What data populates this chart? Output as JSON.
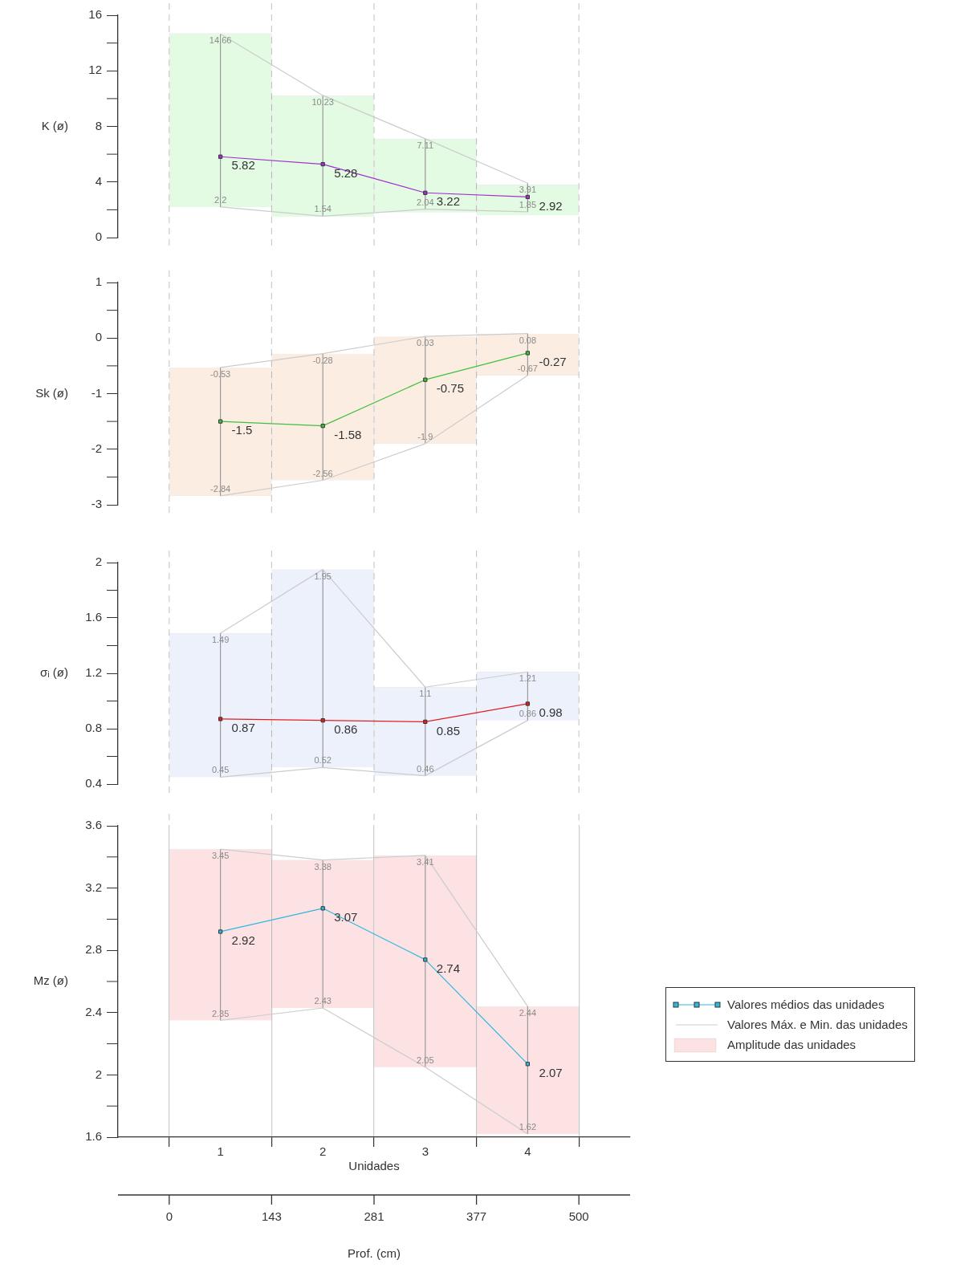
{
  "chart_data": [
    {
      "type": "line",
      "ylabel": "K (ø)",
      "x": [
        1,
        2,
        3,
        4
      ],
      "ylim": [
        0,
        16
      ],
      "yticks": [
        0,
        4,
        8,
        12,
        16
      ],
      "tick_labels": "y",
      "series": [
        {
          "type": "bar",
          "color": "#e3fae3",
          "base": [
            2.2,
            1.5,
            1.8,
            1.6
          ],
          "values": [
            12.5,
            8.7,
            5.3,
            2.2
          ]
        },
        {
          "color": "#cccccc",
          "marker": "none",
          "values": [
            14.66,
            10.23,
            7.11,
            3.91
          ],
          "value_labels": [
            "14.66",
            "10.23",
            "7.11",
            "3.91"
          ]
        },
        {
          "color": "#cccccc",
          "marker": "none",
          "values": [
            2.2,
            1.54,
            2.04,
            1.85
          ],
          "value_labels": [
            "2.2",
            "1.54",
            "2.04",
            "1.85"
          ]
        },
        {
          "color": "#a030d0",
          "marker": "square",
          "values": [
            5.82,
            5.28,
            3.22,
            2.92
          ],
          "errors": [
            [
              2.2,
              14.66
            ],
            [
              1.54,
              10.23
            ],
            [
              2.04,
              7.11
            ],
            [
              1.85,
              3.91
            ]
          ],
          "value_labels": [
            "5.82",
            "5.28",
            "3.22",
            "2.92"
          ]
        }
      ]
    },
    {
      "type": "line",
      "ylabel": "Sk (ø)",
      "x": [
        1,
        2,
        3,
        4
      ],
      "ylim": [
        -3,
        1
      ],
      "yticks": [
        -3,
        -2,
        -1,
        0,
        1
      ],
      "tick_labels": "y",
      "series": [
        {
          "type": "bar",
          "color": "#fcede2",
          "base": [
            -2.84,
            -2.56,
            -1.9,
            -0.67
          ],
          "values": [
            2.31,
            2.28,
            1.93,
            0.75
          ]
        },
        {
          "color": "#cccccc",
          "marker": "none",
          "values": [
            -0.53,
            -0.28,
            0.03,
            0.08
          ],
          "value_labels": [
            "-0.53",
            "-0.28",
            "0.03",
            "0.08"
          ]
        },
        {
          "color": "#cccccc",
          "marker": "none",
          "values": [
            -2.84,
            -2.56,
            -1.9,
            -0.67
          ],
          "value_labels": [
            "-2.84",
            "-2.56",
            "-1.9",
            "-0.67"
          ]
        },
        {
          "color": "#40c040",
          "marker": "square",
          "values": [
            -1.5,
            -1.58,
            -0.75,
            -0.27
          ],
          "errors": [
            [
              -2.84,
              -0.53
            ],
            [
              -2.56,
              -0.28
            ],
            [
              -1.9,
              0.03
            ],
            [
              -0.67,
              0.08
            ]
          ],
          "value_labels": [
            "-1.5",
            "-1.58",
            "-0.75",
            "-0.27"
          ]
        }
      ]
    },
    {
      "type": "line",
      "ylabel": "σᵢ (ø)",
      "x": [
        1,
        2,
        3,
        4
      ],
      "ylim": [
        0.4,
        2
      ],
      "yticks": [
        0.4,
        0.8,
        1.2,
        1.6,
        2
      ],
      "tick_labels": "y",
      "series": [
        {
          "type": "bar",
          "color": "#ecf1fc",
          "base": [
            0.45,
            0.52,
            0.46,
            0.86
          ],
          "values": [
            1.04,
            1.43,
            0.64,
            0.35
          ]
        },
        {
          "color": "#cccccc",
          "marker": "none",
          "values": [
            1.49,
            1.95,
            1.1,
            1.21
          ],
          "value_labels": [
            "1.49",
            "1.95",
            "1.1",
            "1.21"
          ]
        },
        {
          "color": "#cccccc",
          "marker": "none",
          "values": [
            0.45,
            0.52,
            0.46,
            0.86
          ],
          "value_labels": [
            "0.45",
            "0.52",
            "0.46",
            "0.86"
          ]
        },
        {
          "color": "#e02020",
          "marker": "square",
          "values": [
            0.87,
            0.86,
            0.85,
            0.98
          ],
          "errors": [
            [
              0.45,
              1.49
            ],
            [
              0.52,
              1.95
            ],
            [
              0.46,
              1.1
            ],
            [
              0.86,
              1.21
            ]
          ],
          "value_labels": [
            "0.87",
            "0.86",
            "0.85",
            "0.98"
          ]
        }
      ]
    },
    {
      "type": "line",
      "ylabel": "Mz (ø)",
      "xlabel": "Unidades",
      "x2label": "Prof. (cm)",
      "annotations": [
        "0",
        "143",
        "281",
        "377",
        "500"
      ],
      "x": [
        1,
        2,
        3,
        4
      ],
      "xlim": [
        0,
        5
      ],
      "xticks": [
        {
          "value": 0.5,
          "label": null
        },
        1,
        {
          "value": 1.5,
          "label": null
        },
        2,
        {
          "value": 2.5,
          "label": null
        },
        3,
        {
          "value": 3.5,
          "label": null
        },
        4,
        {
          "value": 4.5,
          "label": null
        }
      ],
      "ylim": [
        1.6,
        3.6
      ],
      "yticks": [
        1.6,
        2,
        2.4,
        2.8,
        3.2,
        3.6
      ],
      "legend": "right",
      "grid": "x",
      "series": [
        {
          "type": "bar",
          "name": "Amplitude das unidades",
          "color": "#fce2e2",
          "base": [
            2.35,
            2.43,
            2.05,
            1.62
          ],
          "values": [
            1.1,
            0.95,
            1.36,
            0.82
          ]
        },
        {
          "name": "Valores Máx. e Min. das unidades",
          "color": "#cccccc",
          "marker": "none",
          "values": [
            3.45,
            3.38,
            3.41,
            2.44
          ],
          "value_labels": [
            "3.45",
            "3.38",
            "3.41",
            "2.44"
          ]
        },
        {
          "color": "#cccccc",
          "marker": "none",
          "values": [
            2.35,
            2.43,
            2.05,
            1.62
          ],
          "value_labels": [
            "2.35",
            "2.43",
            "2.05",
            "1.62"
          ]
        },
        {
          "name": "Valores médios das unidades",
          "color": "#30b8e0",
          "marker": "square",
          "values": [
            2.92,
            3.07,
            2.74,
            2.07
          ],
          "errors": [
            [
              2.35,
              3.45
            ],
            [
              2.43,
              3.38
            ],
            [
              2.05,
              3.41
            ],
            [
              1.62,
              2.44
            ]
          ],
          "value_labels": [
            "2.92",
            "3.07",
            "2.74",
            "2.07"
          ]
        }
      ]
    }
  ]
}
